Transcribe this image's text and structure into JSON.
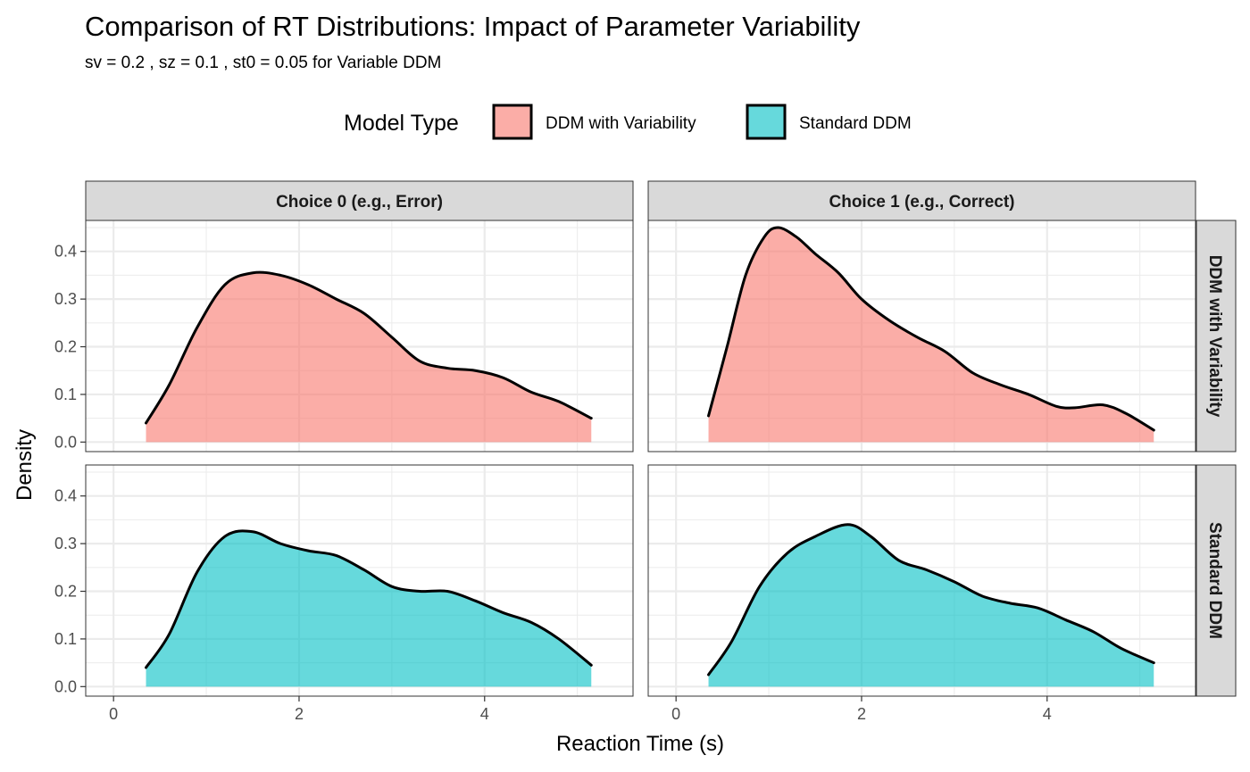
{
  "chart_data": {
    "type": "area",
    "title": "Comparison of RT Distributions: Impact of Parameter Variability",
    "subtitle": "sv = 0.2 , sz = 0.1 , st0 = 0.05 for Variable DDM",
    "xlabel": "Reaction Time (s)",
    "ylabel": "Density",
    "xlim": [
      -0.3,
      5.6
    ],
    "ylim": [
      -0.02,
      0.465
    ],
    "xticks": [
      0,
      2,
      4
    ],
    "yticks": [
      0.0,
      0.1,
      0.2,
      0.3,
      0.4
    ],
    "xtick_labels": [
      "0",
      "2",
      "4"
    ],
    "ytick_labels": [
      "0.0",
      "0.1",
      "0.2",
      "0.3",
      "0.4"
    ],
    "grid": true,
    "legend": {
      "title": "Model Type",
      "position": "top",
      "entries": [
        {
          "label": "DDM with Variability",
          "color": "#f8766d"
        },
        {
          "label": "Standard DDM",
          "color": "#00bfc4"
        }
      ]
    },
    "column_facets": [
      "Choice 0 (e.g., Error)",
      "Choice 1 (e.g., Correct)"
    ],
    "row_facets": [
      "DDM with Variability",
      "Standard DDM"
    ],
    "fill_alpha": 0.6,
    "panels": [
      {
        "choice": "Choice 0 (e.g., Error)",
        "model": "DDM with Variability",
        "color": "#f8766d",
        "x": [
          0.35,
          0.6,
          0.9,
          1.2,
          1.5,
          1.8,
          2.1,
          2.4,
          2.7,
          3.0,
          3.3,
          3.6,
          3.9,
          4.2,
          4.5,
          4.8,
          5.15
        ],
        "y": [
          0.04,
          0.12,
          0.24,
          0.33,
          0.355,
          0.35,
          0.33,
          0.3,
          0.27,
          0.22,
          0.17,
          0.155,
          0.15,
          0.135,
          0.105,
          0.085,
          0.05
        ]
      },
      {
        "choice": "Choice 1 (e.g., Correct)",
        "model": "DDM with Variability",
        "color": "#f8766d",
        "x": [
          0.35,
          0.55,
          0.75,
          0.95,
          1.1,
          1.3,
          1.5,
          1.75,
          2.0,
          2.3,
          2.6,
          2.9,
          3.2,
          3.5,
          3.8,
          4.1,
          4.3,
          4.6,
          4.85,
          5.15
        ],
        "y": [
          0.055,
          0.2,
          0.35,
          0.43,
          0.45,
          0.43,
          0.395,
          0.355,
          0.3,
          0.255,
          0.22,
          0.19,
          0.145,
          0.12,
          0.1,
          0.075,
          0.072,
          0.078,
          0.06,
          0.025
        ]
      },
      {
        "choice": "Choice 0 (e.g., Error)",
        "model": "Standard DDM",
        "color": "#00bfc4",
        "x": [
          0.35,
          0.6,
          0.9,
          1.2,
          1.5,
          1.8,
          2.1,
          2.4,
          2.7,
          3.0,
          3.3,
          3.6,
          3.9,
          4.2,
          4.5,
          4.8,
          5.15
        ],
        "y": [
          0.04,
          0.11,
          0.24,
          0.315,
          0.325,
          0.3,
          0.285,
          0.275,
          0.245,
          0.21,
          0.2,
          0.2,
          0.18,
          0.155,
          0.135,
          0.1,
          0.045
        ]
      },
      {
        "choice": "Choice 1 (e.g., Correct)",
        "model": "Standard DDM",
        "color": "#00bfc4",
        "x": [
          0.35,
          0.6,
          0.9,
          1.2,
          1.5,
          1.85,
          2.1,
          2.4,
          2.7,
          3.0,
          3.3,
          3.6,
          3.9,
          4.2,
          4.5,
          4.8,
          5.15
        ],
        "y": [
          0.025,
          0.095,
          0.21,
          0.28,
          0.315,
          0.34,
          0.315,
          0.265,
          0.245,
          0.22,
          0.19,
          0.175,
          0.165,
          0.14,
          0.115,
          0.08,
          0.05
        ]
      }
    ]
  }
}
